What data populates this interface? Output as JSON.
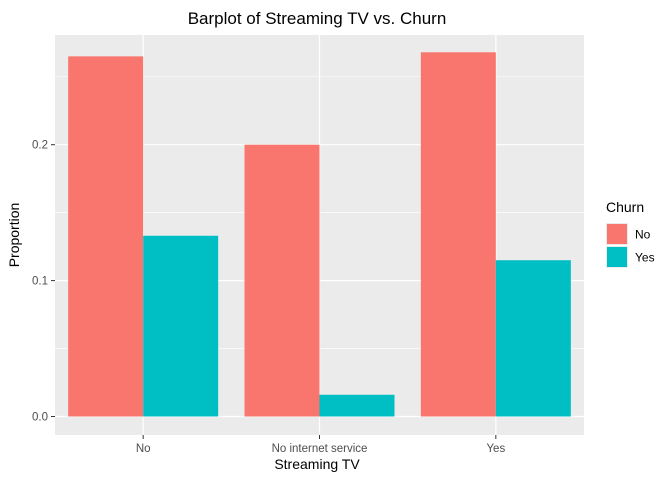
{
  "chart_data": {
    "type": "bar",
    "title": "Barplot of Streaming TV vs. Churn",
    "xlabel": "Streaming TV",
    "ylabel": "Proportion",
    "categories": [
      "No",
      "No internet service",
      "Yes"
    ],
    "series": [
      {
        "name": "No",
        "values": [
          0.265,
          0.2,
          0.268
        ]
      },
      {
        "name": "Yes",
        "values": [
          0.133,
          0.016,
          0.115
        ]
      }
    ],
    "ylim": [
      0,
      0.28
    ],
    "yticks": [
      0.0,
      0.1,
      0.2
    ],
    "ytick_labels": [
      "0.0",
      "0.1",
      "0.2"
    ],
    "grid": true,
    "legend": {
      "title": "Churn",
      "position": "right"
    },
    "colors": {
      "No": "#F8766D",
      "Yes": "#00BFC4",
      "panel": "#EBEBEB",
      "grid": "#FFFFFF"
    }
  }
}
